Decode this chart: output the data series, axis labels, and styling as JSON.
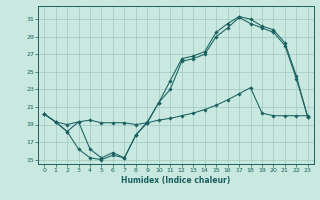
{
  "xlabel": "Humidex (Indice chaleur)",
  "bg_color": "#c8e8e0",
  "grid_color": "#a0c8c0",
  "line_color": "#1a6060",
  "xlim": [
    -0.5,
    23.5
  ],
  "ylim": [
    14.5,
    32.5
  ],
  "xticks": [
    0,
    1,
    2,
    3,
    4,
    5,
    6,
    7,
    8,
    9,
    10,
    11,
    12,
    13,
    14,
    15,
    16,
    17,
    18,
    19,
    20,
    21,
    22,
    23
  ],
  "yticks": [
    15,
    17,
    19,
    21,
    23,
    25,
    27,
    29,
    31
  ],
  "line1_x": [
    0,
    1,
    2,
    3,
    4,
    5,
    6,
    7,
    8,
    9,
    10,
    11,
    12,
    13,
    14,
    15,
    16,
    17,
    18,
    19,
    20,
    21,
    22,
    23
  ],
  "line1_y": [
    20.2,
    19.3,
    18.2,
    19.3,
    16.2,
    15.2,
    15.8,
    15.2,
    17.8,
    19.3,
    21.5,
    24.0,
    26.5,
    26.8,
    27.3,
    29.5,
    30.5,
    31.3,
    31.0,
    30.2,
    29.8,
    28.3,
    24.5,
    19.8
  ],
  "line2_x": [
    0,
    1,
    2,
    3,
    4,
    5,
    6,
    7,
    8,
    9,
    10,
    11,
    12,
    13,
    14,
    15,
    16,
    17,
    18,
    19,
    20,
    21,
    22,
    23
  ],
  "line2_y": [
    20.2,
    19.3,
    19.0,
    19.3,
    19.5,
    19.2,
    19.2,
    19.2,
    19.0,
    19.2,
    19.5,
    19.7,
    20.0,
    20.3,
    20.7,
    21.2,
    21.8,
    22.5,
    23.2,
    20.3,
    20.0,
    20.0,
    20.0,
    20.0
  ],
  "line3_x": [
    0,
    1,
    2,
    3,
    4,
    5,
    6,
    7,
    8,
    9,
    10,
    11,
    12,
    13,
    14,
    15,
    16,
    17,
    18,
    19,
    20,
    21,
    22,
    23
  ],
  "line3_y": [
    20.2,
    19.3,
    18.2,
    16.2,
    15.2,
    15.0,
    15.5,
    15.2,
    17.8,
    19.2,
    21.5,
    23.0,
    26.2,
    26.5,
    27.0,
    29.0,
    30.0,
    31.2,
    30.5,
    30.0,
    29.5,
    28.0,
    24.2,
    19.8
  ]
}
